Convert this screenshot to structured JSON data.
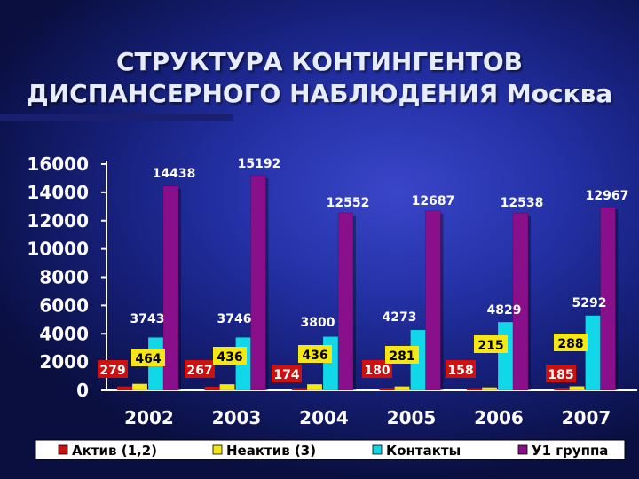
{
  "chart_data": {
    "type": "bar",
    "title": "СТРУКТУРА КОНТИНГЕНТОВ ДИСПАНСЕРНОГО НАБЛЮДЕНИЯ Москва",
    "title_lines": [
      "СТРУКТУРА КОНТИНГЕНТОВ",
      "ДИСПАНСЕРНОГО НАБЛЮДЕНИЯ Москва"
    ],
    "categories": [
      "2002",
      "2003",
      "2004",
      "2005",
      "2006",
      "2007"
    ],
    "ylim": [
      0,
      16000
    ],
    "yticks": [
      "0",
      "2000",
      "4000",
      "6000",
      "8000",
      "10000",
      "12000",
      "14000",
      "16000"
    ],
    "series": [
      {
        "name": "Актив (1,2)",
        "color": "#cc1111",
        "values": [
          279,
          267,
          174,
          180,
          158,
          185
        ]
      },
      {
        "name": "Неактив (3)",
        "color": "#f5e614",
        "values": [
          464,
          436,
          436,
          281,
          215,
          288
        ]
      },
      {
        "name": "Контакты",
        "color": "#11d8e8",
        "values": [
          3743,
          3746,
          3800,
          4273,
          4829,
          5292
        ]
      },
      {
        "name": "У1 группа",
        "color": "#8a0f8a",
        "values": [
          14438,
          15192,
          12552,
          12687,
          12538,
          12967
        ]
      }
    ],
    "data_labels": [
      [
        "279",
        "267",
        "174",
        "180",
        "158",
        "185"
      ],
      [
        "464",
        "436",
        "436",
        "281",
        "215",
        "288"
      ],
      [
        "3743",
        "3746",
        "3800",
        "4273",
        "4829",
        "5292"
      ],
      [
        "14438",
        "15192",
        "12552",
        "12687",
        "12538",
        "12967"
      ]
    ],
    "legend": {
      "position": "bottom",
      "items": [
        "Актив (1,2)",
        "Неактив (3)",
        "Контакты",
        "У1 группа"
      ]
    },
    "grid": false
  }
}
